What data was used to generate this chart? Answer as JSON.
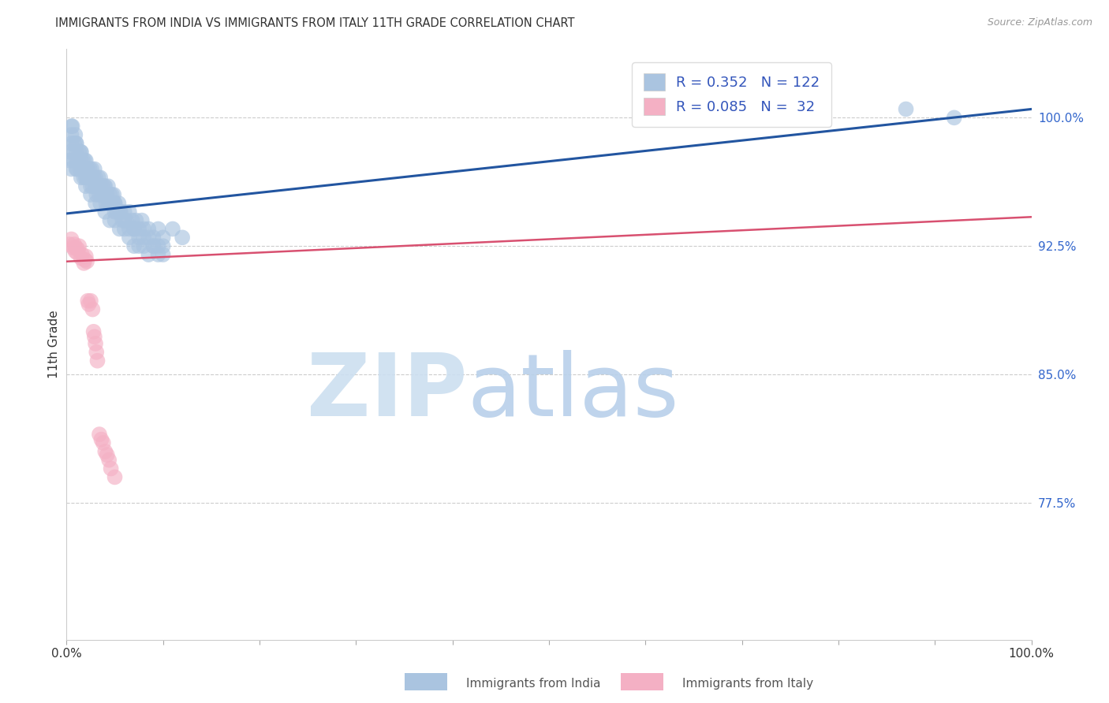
{
  "title": "IMMIGRANTS FROM INDIA VS IMMIGRANTS FROM ITALY 11TH GRADE CORRELATION CHART",
  "source_text": "Source: ZipAtlas.com",
  "ylabel": "11th Grade",
  "y_tick_labels": [
    "77.5%",
    "85.0%",
    "92.5%",
    "100.0%"
  ],
  "y_tick_values": [
    0.775,
    0.85,
    0.925,
    1.0
  ],
  "x_min": 0.0,
  "x_max": 1.0,
  "y_min": 0.695,
  "y_max": 1.04,
  "legend_india_label": "Immigrants from India",
  "legend_italy_label": "Immigrants from Italy",
  "india_R": 0.352,
  "india_N": 122,
  "italy_R": 0.085,
  "italy_N": 32,
  "india_color": "#aac4e0",
  "italy_color": "#f4b0c4",
  "india_line_color": "#2255a0",
  "italy_line_color": "#d85070",
  "background_color": "#ffffff",
  "title_fontsize": 11,
  "india_x": [
    0.003,
    0.004,
    0.005,
    0.005,
    0.006,
    0.007,
    0.008,
    0.008,
    0.009,
    0.01,
    0.01,
    0.01,
    0.011,
    0.012,
    0.013,
    0.014,
    0.015,
    0.015,
    0.016,
    0.017,
    0.018,
    0.018,
    0.019,
    0.02,
    0.02,
    0.02,
    0.021,
    0.022,
    0.023,
    0.024,
    0.025,
    0.025,
    0.026,
    0.027,
    0.028,
    0.029,
    0.03,
    0.03,
    0.031,
    0.032,
    0.033,
    0.034,
    0.035,
    0.035,
    0.036,
    0.037,
    0.038,
    0.039,
    0.04,
    0.04,
    0.041,
    0.042,
    0.043,
    0.044,
    0.045,
    0.046,
    0.047,
    0.048,
    0.049,
    0.05,
    0.05,
    0.052,
    0.054,
    0.056,
    0.058,
    0.06,
    0.062,
    0.065,
    0.068,
    0.07,
    0.072,
    0.075,
    0.078,
    0.08,
    0.085,
    0.09,
    0.095,
    0.1,
    0.11,
    0.12,
    0.005,
    0.01,
    0.015,
    0.02,
    0.025,
    0.03,
    0.035,
    0.04,
    0.045,
    0.05,
    0.055,
    0.06,
    0.065,
    0.07,
    0.075,
    0.08,
    0.085,
    0.09,
    0.095,
    0.1,
    0.005,
    0.01,
    0.015,
    0.02,
    0.025,
    0.03,
    0.035,
    0.04,
    0.045,
    0.05,
    0.055,
    0.06,
    0.065,
    0.07,
    0.075,
    0.08,
    0.085,
    0.09,
    0.095,
    0.1,
    0.87,
    0.92
  ],
  "india_y": [
    0.975,
    0.98,
    0.985,
    0.99,
    0.995,
    0.975,
    0.98,
    0.985,
    0.99,
    0.975,
    0.98,
    0.985,
    0.97,
    0.975,
    0.98,
    0.97,
    0.975,
    0.98,
    0.97,
    0.975,
    0.965,
    0.97,
    0.975,
    0.965,
    0.97,
    0.975,
    0.965,
    0.97,
    0.965,
    0.97,
    0.96,
    0.965,
    0.97,
    0.96,
    0.965,
    0.97,
    0.96,
    0.965,
    0.955,
    0.96,
    0.965,
    0.955,
    0.96,
    0.965,
    0.955,
    0.96,
    0.955,
    0.96,
    0.955,
    0.96,
    0.95,
    0.955,
    0.96,
    0.95,
    0.955,
    0.95,
    0.955,
    0.95,
    0.955,
    0.945,
    0.95,
    0.945,
    0.95,
    0.945,
    0.94,
    0.945,
    0.94,
    0.945,
    0.94,
    0.935,
    0.94,
    0.935,
    0.94,
    0.935,
    0.935,
    0.93,
    0.935,
    0.93,
    0.935,
    0.93,
    0.995,
    0.985,
    0.98,
    0.97,
    0.965,
    0.96,
    0.96,
    0.955,
    0.95,
    0.95,
    0.945,
    0.94,
    0.935,
    0.935,
    0.93,
    0.93,
    0.93,
    0.925,
    0.925,
    0.925,
    0.97,
    0.97,
    0.965,
    0.96,
    0.955,
    0.95,
    0.95,
    0.945,
    0.94,
    0.94,
    0.935,
    0.935,
    0.93,
    0.925,
    0.925,
    0.925,
    0.92,
    0.925,
    0.92,
    0.92,
    1.005,
    1.0
  ],
  "italy_x": [
    0.003,
    0.005,
    0.007,
    0.008,
    0.009,
    0.01,
    0.011,
    0.012,
    0.013,
    0.015,
    0.016,
    0.018,
    0.019,
    0.02,
    0.021,
    0.022,
    0.023,
    0.025,
    0.027,
    0.028,
    0.029,
    0.03,
    0.031,
    0.032,
    0.034,
    0.036,
    0.038,
    0.04,
    0.042,
    0.044,
    0.046,
    0.05
  ],
  "italy_y": [
    0.926,
    0.929,
    0.924,
    0.926,
    0.922,
    0.924,
    0.921,
    0.923,
    0.925,
    0.918,
    0.92,
    0.915,
    0.917,
    0.919,
    0.916,
    0.893,
    0.891,
    0.893,
    0.888,
    0.875,
    0.872,
    0.868,
    0.863,
    0.858,
    0.815,
    0.812,
    0.81,
    0.805,
    0.803,
    0.8,
    0.795,
    0.79
  ],
  "india_trendline_x0": 0.0,
  "india_trendline_x1": 1.0,
  "india_trendline_y0": 0.944,
  "india_trendline_y1": 1.005,
  "italy_trendline_x0": 0.0,
  "italy_trendline_x1": 1.0,
  "italy_trendline_y0": 0.916,
  "italy_trendline_y1": 0.942
}
